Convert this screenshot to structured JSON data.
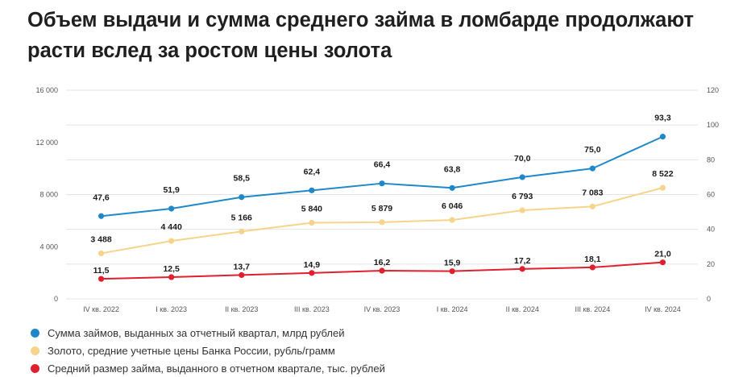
{
  "title": "Объем выдачи и сумма среднего займа в ломбарде продолжают расти вслед за ростом цены золота",
  "chart_data": {
    "type": "line",
    "categories": [
      "IV кв. 2022",
      "I кв. 2023",
      "II кв. 2023",
      "III кв. 2023",
      "IV кв. 2023",
      "I кв. 2024",
      "II кв. 2024",
      "III кв. 2024",
      "IV кв. 2024"
    ],
    "left_axis": {
      "min": 0,
      "max": 16000,
      "ticks": [
        0,
        4000,
        8000,
        12000,
        16000
      ],
      "tick_labels": [
        "0",
        "4 000",
        "8 000",
        "12 000",
        "16 000"
      ]
    },
    "right_axis": {
      "min": 0,
      "max": 120,
      "ticks": [
        0,
        20,
        40,
        60,
        80,
        100,
        120
      ],
      "tick_labels": [
        "0",
        "20",
        "40",
        "60",
        "80",
        "100",
        "120"
      ]
    },
    "grid": true,
    "legend_position": "bottom-left",
    "series": [
      {
        "name": "Сумма займов, выданных за отчетный квартал, млрд рублей",
        "axis": "right",
        "color": "#1f88c9",
        "values": [
          47.6,
          51.9,
          58.5,
          62.4,
          66.4,
          63.8,
          70.0,
          75.0,
          93.3
        ],
        "labels": [
          "47,6",
          "51,9",
          "58,5",
          "62,4",
          "66,4",
          "63,8",
          "70,0",
          "75,0",
          "93,3"
        ]
      },
      {
        "name": "Золото, средние учетные цены Банка России, рубль/грамм",
        "axis": "left",
        "color": "#f7d48c",
        "values": [
          3488,
          4440,
          5166,
          5840,
          5879,
          6046,
          6793,
          7083,
          8522
        ],
        "labels": [
          "3 488",
          "4 440",
          "5 166",
          "5 840",
          "5 879",
          "6 046",
          "6 793",
          "7 083",
          "8 522"
        ]
      },
      {
        "name": "Средний размер займа, выданного в отчетном квартале, тыс. рублей",
        "axis": "right",
        "color": "#e0202e",
        "values": [
          11.5,
          12.5,
          13.7,
          14.9,
          16.2,
          15.9,
          17.2,
          18.1,
          21.0
        ],
        "labels": [
          "11,5",
          "12,5",
          "13,7",
          "14,9",
          "16,2",
          "15,9",
          "17,2",
          "18,1",
          "21,0"
        ]
      }
    ]
  },
  "colors": {
    "grid": "#e4e4e4",
    "axis_text": "#555555",
    "label_text": "#1a1a1a"
  }
}
